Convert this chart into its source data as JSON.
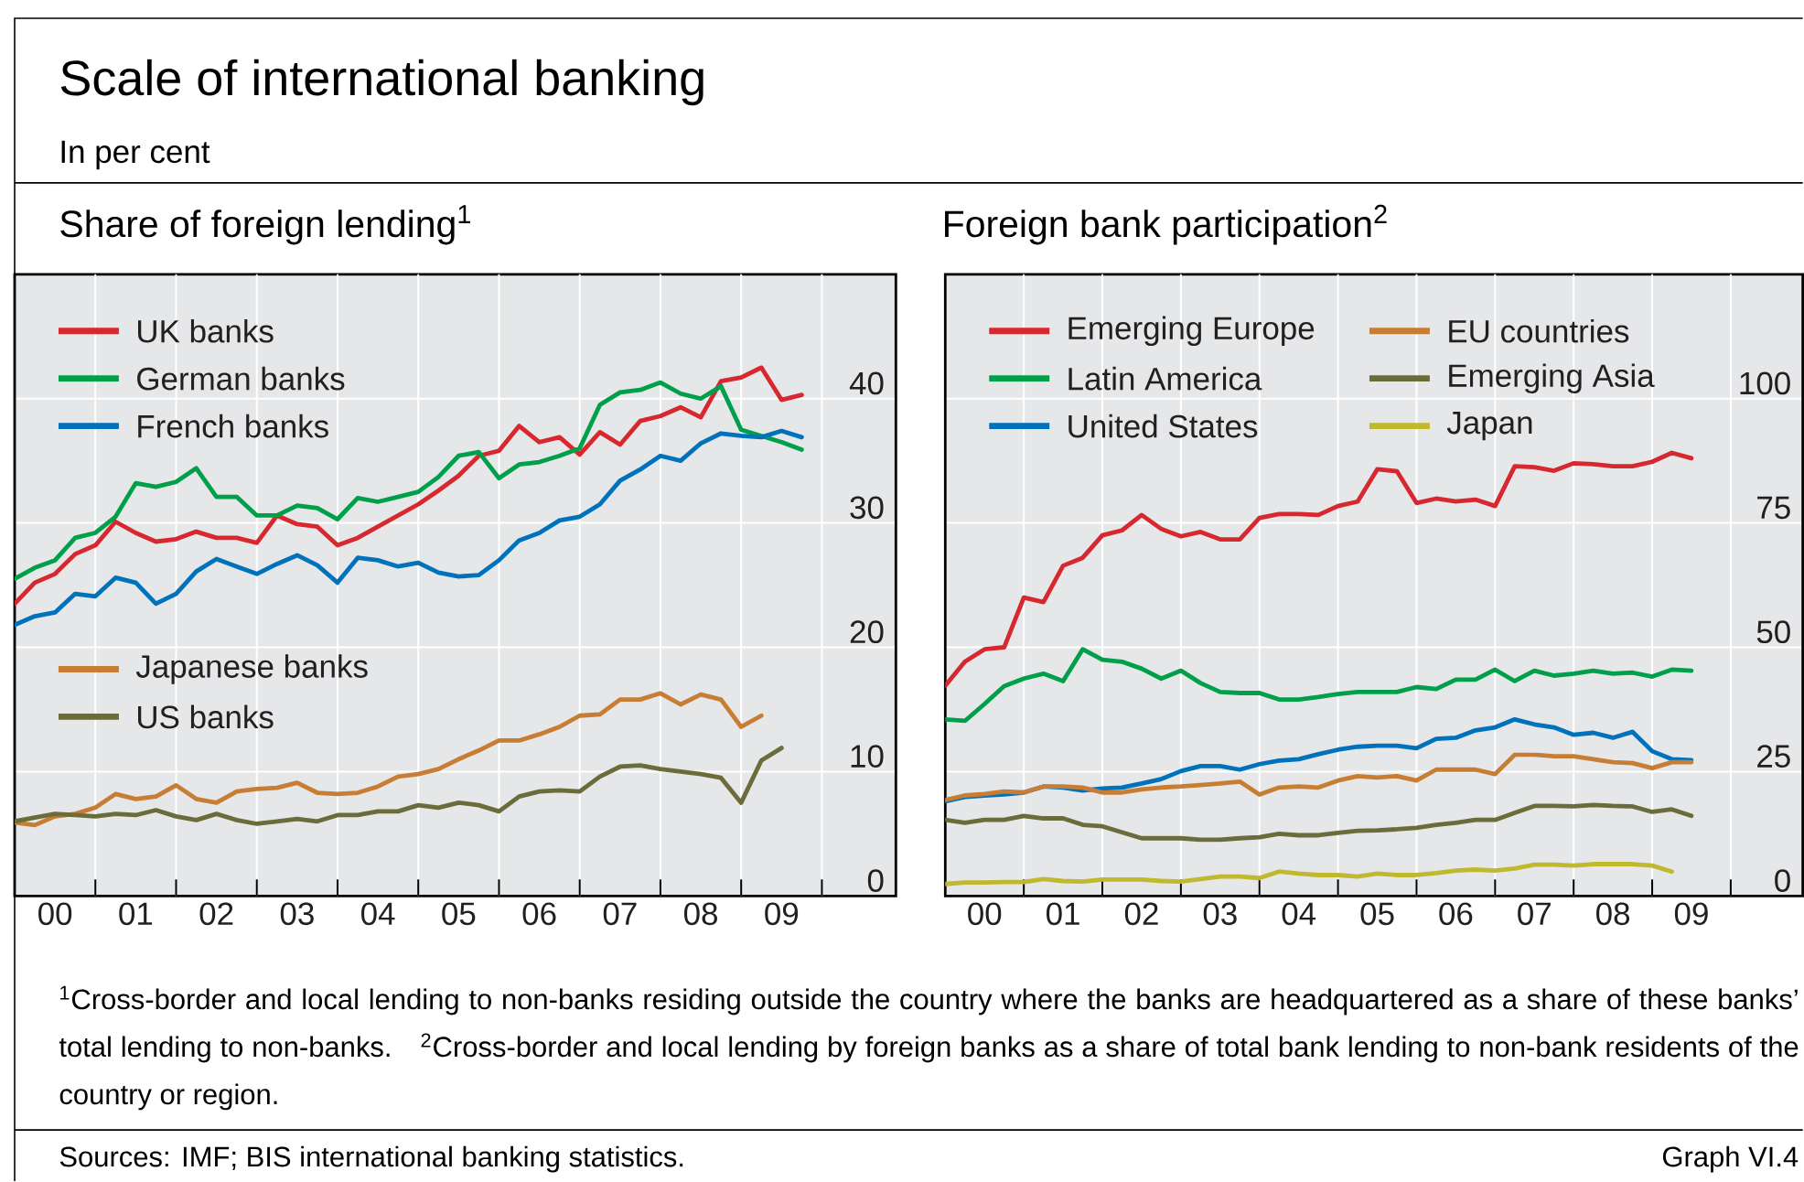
{
  "chart_data": [
    {
      "type": "other",
      "title": "Scale of international banking",
      "subtitle": "In per cent",
      "annotations": [
        "$^{1}$Cross-border and local lending to non-banks residing outside the country where the banks are headquartered as a share of these banks’ total lending to non-banks.",
        "$^{2}$Cross-border and local lending by foreign banks as a share of total bank lending to non-bank residents of the country or region.",
        "Sources: IMF; BIS international banking statistics.",
        "Graph VI.4"
      ]
    },
    {
      "type": "line",
      "title": "Share of foreign lending$^{1}$",
      "xlim": [
        "2000",
        "2010-12"
      ],
      "ylim": [
        0,
        50
      ],
      "yticks": [
        0,
        10,
        20,
        30,
        40
      ],
      "grid": true,
      "legend": "top left",
      "xticks": [
        {
          "value": "2000-07",
          "label": "00"
        },
        {
          "value": "2001",
          "label": null
        },
        {
          "value": "2001-07",
          "label": "01"
        },
        {
          "value": "2002",
          "label": null
        },
        {
          "value": "2002-07",
          "label": "02"
        },
        {
          "value": "2003",
          "label": null
        },
        {
          "value": "2003-07",
          "label": "03"
        },
        {
          "value": "2004",
          "label": null
        },
        {
          "value": "2004-07",
          "label": "04"
        },
        {
          "value": "2005",
          "label": null
        },
        {
          "value": "2005-07",
          "label": "05"
        },
        {
          "value": "2006",
          "label": null
        },
        {
          "value": "2006-07",
          "label": "06"
        },
        {
          "value": "2007",
          "label": null
        },
        {
          "value": "2007-07",
          "label": "07"
        },
        {
          "value": "2008",
          "label": null
        },
        {
          "value": "2008-07",
          "label": "08"
        },
        {
          "value": "2009",
          "label": null
        },
        {
          "value": "2009-07",
          "label": "09"
        },
        {
          "value": "2010",
          "label": null
        }
      ],
      "x": [
        "2000-01",
        "2000-04",
        "2000-07",
        "2000-10",
        "2001-01",
        "2001-04",
        "2001-07",
        "2001-10",
        "2002-01",
        "2002-04",
        "2002-07",
        "2002-10",
        "2003-01",
        "2003-04",
        "2003-07",
        "2003-10",
        "2004-01",
        "2004-04",
        "2004-07",
        "2004-10",
        "2005-01",
        "2005-04",
        "2005-07",
        "2005-10",
        "2006-01",
        "2006-04",
        "2006-07",
        "2006-10",
        "2007-01",
        "2007-04",
        "2007-07",
        "2007-10",
        "2008-01",
        "2008-04",
        "2008-07",
        "2008-10",
        "2009-01",
        "2009-04",
        "2009-07",
        "2009-10"
      ],
      "series": [
        {
          "name": "UK banks",
          "color": "#d7282f",
          "values": [
            23.5,
            25.2,
            25.9,
            27.5,
            28.2,
            30.1,
            29.2,
            28.5,
            28.7,
            29.3,
            28.8,
            28.8,
            28.4,
            30.6,
            29.9,
            29.7,
            28.2,
            28.8,
            29.7,
            30.6,
            31.5,
            32.6,
            33.8,
            35.4,
            35.8,
            37.8,
            36.5,
            36.9,
            35.5,
            37.3,
            36.3,
            38.2,
            38.6,
            39.3,
            38.5,
            41.4,
            41.7,
            42.5,
            39.9,
            40.3
          ]
        },
        {
          "name": "German banks",
          "color": "#00a04b",
          "values": [
            25.5,
            26.4,
            27.0,
            28.8,
            29.2,
            30.5,
            33.2,
            32.9,
            33.3,
            34.4,
            32.1,
            32.1,
            30.6,
            30.6,
            31.4,
            31.2,
            30.3,
            32.0,
            31.7,
            32.1,
            32.5,
            33.7,
            35.4,
            35.7,
            33.6,
            34.7,
            34.9,
            35.4,
            36.0,
            39.5,
            40.5,
            40.7,
            41.3,
            40.4,
            40.0,
            41.0,
            37.5,
            37.0,
            36.5,
            35.9
          ]
        },
        {
          "name": "French banks",
          "color": "#0072bc",
          "values": [
            21.8,
            22.5,
            22.8,
            24.3,
            24.1,
            25.6,
            25.2,
            23.5,
            24.3,
            26.1,
            27.1,
            26.5,
            25.9,
            26.7,
            27.4,
            26.6,
            25.2,
            27.2,
            27.0,
            26.5,
            26.8,
            26.0,
            25.7,
            25.8,
            27.0,
            28.6,
            29.2,
            30.2,
            30.5,
            31.5,
            33.4,
            34.3,
            35.4,
            35.0,
            36.4,
            37.2,
            37.0,
            36.9,
            37.4,
            36.9
          ]
        },
        {
          "name": "Japanese banks",
          "color": "#c87d35",
          "values": [
            5.9,
            5.7,
            6.4,
            6.6,
            7.1,
            8.2,
            7.8,
            8.0,
            8.9,
            7.8,
            7.5,
            8.4,
            8.6,
            8.7,
            9.1,
            8.3,
            8.2,
            8.3,
            8.8,
            9.6,
            9.8,
            10.2,
            11.0,
            11.7,
            12.5,
            12.5,
            13.0,
            13.6,
            14.5,
            14.6,
            15.8,
            15.8,
            16.3,
            15.4,
            16.2,
            15.8,
            13.6,
            14.5,
            null,
            null
          ]
        },
        {
          "name": "US banks",
          "color": "#6b6b3b",
          "values": [
            6.0,
            6.3,
            6.6,
            6.5,
            6.4,
            6.6,
            6.5,
            6.9,
            6.4,
            6.1,
            6.6,
            6.1,
            5.8,
            6.0,
            6.2,
            6.0,
            6.5,
            6.5,
            6.8,
            6.8,
            7.3,
            7.1,
            7.5,
            7.3,
            6.8,
            8.0,
            8.4,
            8.5,
            8.4,
            9.6,
            10.4,
            10.5,
            10.2,
            10.0,
            9.8,
            9.5,
            7.5,
            10.9,
            11.9,
            null
          ]
        }
      ]
    },
    {
      "type": "line",
      "title": "Foreign bank participation$^{2}$",
      "xlim": [
        "2000",
        "2010-12"
      ],
      "ylim": [
        0,
        125
      ],
      "yticks": [
        0,
        25,
        50,
        75,
        100
      ],
      "grid": true,
      "legend": "top left",
      "xticks": [
        {
          "value": "2000-07",
          "label": "00"
        },
        {
          "value": "2001",
          "label": null
        },
        {
          "value": "2001-07",
          "label": "01"
        },
        {
          "value": "2002",
          "label": null
        },
        {
          "value": "2002-07",
          "label": "02"
        },
        {
          "value": "2003",
          "label": null
        },
        {
          "value": "2003-07",
          "label": "03"
        },
        {
          "value": "2004",
          "label": null
        },
        {
          "value": "2004-07",
          "label": "04"
        },
        {
          "value": "2005",
          "label": null
        },
        {
          "value": "2005-07",
          "label": "05"
        },
        {
          "value": "2006",
          "label": null
        },
        {
          "value": "2006-07",
          "label": "06"
        },
        {
          "value": "2007",
          "label": null
        },
        {
          "value": "2007-07",
          "label": "07"
        },
        {
          "value": "2008",
          "label": null
        },
        {
          "value": "2008-07",
          "label": "08"
        },
        {
          "value": "2009",
          "label": null
        },
        {
          "value": "2009-07",
          "label": "09"
        },
        {
          "value": "2010",
          "label": null
        }
      ],
      "x": [
        "2000-01",
        "2000-04",
        "2000-07",
        "2000-10",
        "2001-01",
        "2001-04",
        "2001-07",
        "2001-10",
        "2002-01",
        "2002-04",
        "2002-07",
        "2002-10",
        "2003-01",
        "2003-04",
        "2003-07",
        "2003-10",
        "2004-01",
        "2004-04",
        "2004-07",
        "2004-10",
        "2005-01",
        "2005-04",
        "2005-07",
        "2005-10",
        "2006-01",
        "2006-04",
        "2006-07",
        "2006-10",
        "2007-01",
        "2007-04",
        "2007-07",
        "2007-10",
        "2008-01",
        "2008-04",
        "2008-07",
        "2008-10",
        "2009-01",
        "2009-04",
        "2009-07"
      ],
      "series": [
        {
          "name": "Emerging Europe",
          "color": "#d7282f",
          "values": [
            42.3,
            47.1,
            49.6,
            50.0,
            60.0,
            59.1,
            66.4,
            68.0,
            72.5,
            73.5,
            76.6,
            73.8,
            72.3,
            73.2,
            71.7,
            71.7,
            76.0,
            76.8,
            76.8,
            76.6,
            78.4,
            79.3,
            85.8,
            85.4,
            79.0,
            79.9,
            79.3,
            79.7,
            78.4,
            86.4,
            86.2,
            85.5,
            87.0,
            86.8,
            86.4,
            86.4,
            87.3,
            89.1,
            88.0
          ]
        },
        {
          "name": "Latin America",
          "color": "#00a04b",
          "values": [
            35.5,
            35.2,
            38.6,
            42.2,
            43.7,
            44.7,
            43.2,
            49.6,
            47.5,
            47.1,
            45.7,
            43.7,
            45.3,
            42.8,
            41.0,
            40.8,
            40.8,
            39.5,
            39.5,
            40.0,
            40.6,
            41.0,
            41.0,
            41.0,
            42.0,
            41.6,
            43.5,
            43.5,
            45.5,
            43.2,
            45.3,
            44.3,
            44.7,
            45.3,
            44.7,
            44.9,
            44.1,
            45.5,
            45.3
          ]
        },
        {
          "name": "United States",
          "color": "#0072bc",
          "values": [
            19.0,
            19.9,
            20.2,
            20.4,
            20.8,
            22.0,
            21.8,
            21.2,
            21.6,
            21.8,
            22.6,
            23.5,
            25.1,
            26.1,
            26.1,
            25.4,
            26.5,
            27.2,
            27.5,
            28.5,
            29.4,
            30.0,
            30.2,
            30.2,
            29.7,
            31.6,
            31.8,
            33.3,
            33.9,
            35.5,
            34.5,
            33.9,
            32.4,
            32.8,
            31.8,
            33.0,
            29.1,
            27.5,
            27.3
          ]
        },
        {
          "name": "EU countries",
          "color": "#c87d35",
          "values": [
            19.3,
            20.2,
            20.5,
            21.0,
            20.8,
            22.0,
            22.0,
            21.8,
            20.8,
            20.8,
            21.4,
            21.8,
            22.0,
            22.3,
            22.6,
            23.0,
            20.4,
            21.8,
            22.0,
            21.8,
            23.2,
            24.1,
            23.8,
            24.1,
            23.2,
            25.4,
            25.4,
            25.4,
            24.5,
            28.4,
            28.4,
            28.1,
            28.1,
            27.5,
            26.9,
            26.7,
            25.7,
            26.9,
            26.9
          ]
        },
        {
          "name": "Emerging Asia",
          "color": "#6b6b3b",
          "values": [
            15.3,
            14.7,
            15.3,
            15.3,
            16.1,
            15.6,
            15.6,
            14.3,
            14.0,
            12.8,
            11.6,
            11.6,
            11.6,
            11.3,
            11.3,
            11.6,
            11.8,
            12.5,
            12.2,
            12.2,
            12.7,
            13.1,
            13.2,
            13.4,
            13.7,
            14.3,
            14.7,
            15.3,
            15.3,
            16.7,
            18.1,
            18.1,
            18.0,
            18.3,
            18.1,
            18.0,
            16.9,
            17.4,
            16.1
          ]
        },
        {
          "name": "Japan",
          "color": "#c0b930",
          "values": [
            2.4,
            2.7,
            2.7,
            2.8,
            2.8,
            3.4,
            3.0,
            2.9,
            3.3,
            3.3,
            3.3,
            3.0,
            2.9,
            3.4,
            3.9,
            3.9,
            3.6,
            4.9,
            4.5,
            4.2,
            4.2,
            3.9,
            4.5,
            4.2,
            4.2,
            4.6,
            5.1,
            5.3,
            5.1,
            5.5,
            6.3,
            6.3,
            6.1,
            6.4,
            6.4,
            6.4,
            6.1,
            4.9,
            null
          ]
        }
      ]
    }
  ]
}
